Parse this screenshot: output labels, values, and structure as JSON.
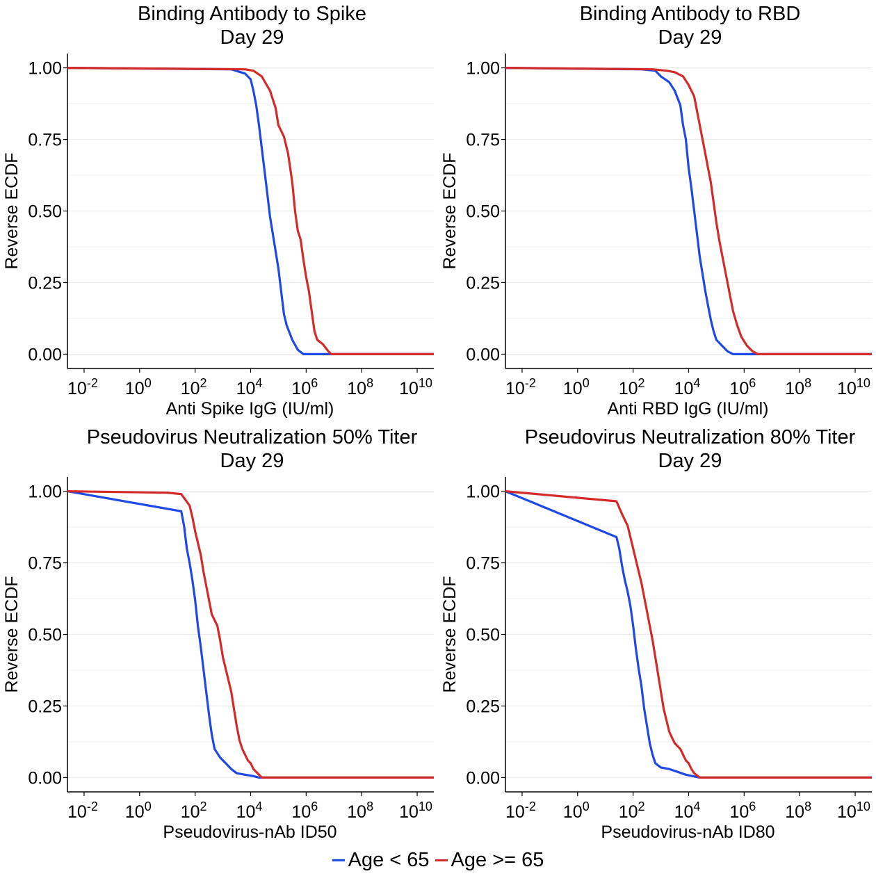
{
  "colors": {
    "young": "#1f49e6",
    "old": "#d42a2a",
    "grid": "#ebebeb",
    "axis": "#000000"
  },
  "legend": {
    "young_label": "Age < 65",
    "old_label": "Age >= 65"
  },
  "chart_data": [
    {
      "type": "line",
      "title": "Binding Antibody to Spike",
      "subtitle": "Day 29",
      "xlabel": "Anti Spike IgG (IU/ml)",
      "ylabel": "Reverse ECDF",
      "x_scale": "log10",
      "xlim_log10": [
        -2.6,
        10.6
      ],
      "ylim": [
        0,
        1
      ],
      "x_tick_exponents": [
        -2,
        0,
        2,
        4,
        6,
        8,
        10
      ],
      "x_tick_base": "10",
      "y_ticks": [
        "0.00",
        "0.25",
        "0.50",
        "0.75",
        "1.00"
      ],
      "grid": true,
      "series": [
        {
          "name": "Age < 65",
          "color_key": "young",
          "points": [
            [
              -2.6,
              1.0
            ],
            [
              3.3,
              0.995
            ],
            [
              3.8,
              0.98
            ],
            [
              4.0,
              0.96
            ],
            [
              4.1,
              0.92
            ],
            [
              4.2,
              0.87
            ],
            [
              4.3,
              0.8
            ],
            [
              4.4,
              0.72
            ],
            [
              4.5,
              0.64
            ],
            [
              4.6,
              0.56
            ],
            [
              4.7,
              0.48
            ],
            [
              4.8,
              0.42
            ],
            [
              4.9,
              0.36
            ],
            [
              5.0,
              0.3
            ],
            [
              5.1,
              0.22
            ],
            [
              5.2,
              0.14
            ],
            [
              5.3,
              0.1
            ],
            [
              5.5,
              0.05
            ],
            [
              5.7,
              0.015
            ],
            [
              5.9,
              0.0
            ],
            [
              10.6,
              0.0
            ]
          ]
        },
        {
          "name": "Age >= 65",
          "color_key": "old",
          "points": [
            [
              -2.6,
              1.0
            ],
            [
              3.8,
              0.995
            ],
            [
              4.1,
              0.99
            ],
            [
              4.4,
              0.97
            ],
            [
              4.7,
              0.92
            ],
            [
              4.9,
              0.86
            ],
            [
              5.0,
              0.8
            ],
            [
              5.2,
              0.76
            ],
            [
              5.35,
              0.7
            ],
            [
              5.5,
              0.6
            ],
            [
              5.6,
              0.5
            ],
            [
              5.7,
              0.43
            ],
            [
              5.8,
              0.4
            ],
            [
              5.9,
              0.33
            ],
            [
              6.0,
              0.27
            ],
            [
              6.1,
              0.22
            ],
            [
              6.2,
              0.15
            ],
            [
              6.3,
              0.08
            ],
            [
              6.4,
              0.05
            ],
            [
              6.6,
              0.035
            ],
            [
              6.8,
              0.01
            ],
            [
              6.9,
              0.0
            ],
            [
              10.6,
              0.0
            ]
          ]
        }
      ]
    },
    {
      "type": "line",
      "title": "Binding Antibody to RBD",
      "subtitle": "Day 29",
      "xlabel": "Anti RBD IgG (IU/ml)",
      "ylabel": "Reverse ECDF",
      "x_scale": "log10",
      "xlim_log10": [
        -2.6,
        10.6
      ],
      "ylim": [
        0,
        1
      ],
      "x_tick_exponents": [
        -2,
        0,
        2,
        4,
        6,
        8,
        10
      ],
      "x_tick_base": "10",
      "y_ticks": [
        "0.00",
        "0.25",
        "0.50",
        "0.75",
        "1.00"
      ],
      "grid": true,
      "series": [
        {
          "name": "Age < 65",
          "color_key": "young",
          "points": [
            [
              -2.6,
              1.0
            ],
            [
              2.3,
              0.995
            ],
            [
              2.8,
              0.99
            ],
            [
              3.0,
              0.97
            ],
            [
              3.3,
              0.95
            ],
            [
              3.5,
              0.92
            ],
            [
              3.7,
              0.87
            ],
            [
              3.8,
              0.8
            ],
            [
              3.9,
              0.75
            ],
            [
              4.0,
              0.65
            ],
            [
              4.1,
              0.58
            ],
            [
              4.2,
              0.5
            ],
            [
              4.3,
              0.42
            ],
            [
              4.4,
              0.34
            ],
            [
              4.5,
              0.28
            ],
            [
              4.6,
              0.22
            ],
            [
              4.7,
              0.17
            ],
            [
              4.8,
              0.12
            ],
            [
              4.9,
              0.08
            ],
            [
              5.0,
              0.05
            ],
            [
              5.2,
              0.03
            ],
            [
              5.4,
              0.01
            ],
            [
              5.6,
              0.0
            ],
            [
              10.6,
              0.0
            ]
          ]
        },
        {
          "name": "Age >= 65",
          "color_key": "old",
          "points": [
            [
              -2.6,
              1.0
            ],
            [
              2.7,
              0.995
            ],
            [
              3.2,
              0.99
            ],
            [
              3.5,
              0.985
            ],
            [
              3.8,
              0.97
            ],
            [
              4.0,
              0.94
            ],
            [
              4.2,
              0.9
            ],
            [
              4.3,
              0.85
            ],
            [
              4.4,
              0.8
            ],
            [
              4.5,
              0.75
            ],
            [
              4.6,
              0.7
            ],
            [
              4.7,
              0.65
            ],
            [
              4.8,
              0.6
            ],
            [
              4.9,
              0.53
            ],
            [
              5.0,
              0.46
            ],
            [
              5.1,
              0.4
            ],
            [
              5.2,
              0.35
            ],
            [
              5.3,
              0.3
            ],
            [
              5.4,
              0.25
            ],
            [
              5.5,
              0.2
            ],
            [
              5.6,
              0.15
            ],
            [
              5.75,
              0.1
            ],
            [
              5.9,
              0.06
            ],
            [
              6.1,
              0.03
            ],
            [
              6.3,
              0.01
            ],
            [
              6.5,
              0.0
            ],
            [
              10.6,
              0.0
            ]
          ]
        }
      ]
    },
    {
      "type": "line",
      "title": "Pseudovirus Neutralization 50% Titer",
      "subtitle": "Day 29",
      "xlabel": "Pseudovirus-nAb ID50",
      "ylabel": "Reverse ECDF",
      "x_scale": "log10",
      "xlim_log10": [
        -2.6,
        10.6
      ],
      "ylim": [
        0,
        1
      ],
      "x_tick_exponents": [
        -2,
        0,
        2,
        4,
        6,
        8,
        10
      ],
      "x_tick_base": "10",
      "y_ticks": [
        "0.00",
        "0.25",
        "0.50",
        "0.75",
        "1.00"
      ],
      "grid": true,
      "series": [
        {
          "name": "Age < 65",
          "color_key": "young",
          "points": [
            [
              -2.6,
              1.0
            ],
            [
              1.5,
              0.93
            ],
            [
              1.6,
              0.88
            ],
            [
              1.7,
              0.8
            ],
            [
              1.8,
              0.75
            ],
            [
              1.9,
              0.69
            ],
            [
              2.0,
              0.62
            ],
            [
              2.1,
              0.53
            ],
            [
              2.2,
              0.46
            ],
            [
              2.3,
              0.38
            ],
            [
              2.4,
              0.3
            ],
            [
              2.5,
              0.22
            ],
            [
              2.6,
              0.15
            ],
            [
              2.7,
              0.1
            ],
            [
              2.9,
              0.07
            ],
            [
              3.1,
              0.05
            ],
            [
              3.3,
              0.03
            ],
            [
              3.5,
              0.015
            ],
            [
              3.8,
              0.01
            ],
            [
              4.1,
              0.005
            ],
            [
              4.3,
              0.0
            ],
            [
              10.6,
              0.0
            ]
          ]
        },
        {
          "name": "Age >= 65",
          "color_key": "old",
          "points": [
            [
              -2.6,
              1.0
            ],
            [
              1.0,
              0.995
            ],
            [
              1.5,
              0.99
            ],
            [
              1.8,
              0.95
            ],
            [
              1.9,
              0.91
            ],
            [
              2.0,
              0.86
            ],
            [
              2.1,
              0.82
            ],
            [
              2.2,
              0.78
            ],
            [
              2.3,
              0.72
            ],
            [
              2.4,
              0.67
            ],
            [
              2.5,
              0.62
            ],
            [
              2.6,
              0.57
            ],
            [
              2.8,
              0.53
            ],
            [
              2.9,
              0.48
            ],
            [
              3.0,
              0.42
            ],
            [
              3.1,
              0.38
            ],
            [
              3.2,
              0.34
            ],
            [
              3.3,
              0.3
            ],
            [
              3.4,
              0.24
            ],
            [
              3.5,
              0.18
            ],
            [
              3.6,
              0.13
            ],
            [
              3.7,
              0.1
            ],
            [
              3.8,
              0.08
            ],
            [
              3.9,
              0.06
            ],
            [
              4.0,
              0.05
            ],
            [
              4.1,
              0.03
            ],
            [
              4.2,
              0.02
            ],
            [
              4.3,
              0.01
            ],
            [
              4.4,
              0.0
            ],
            [
              10.6,
              0.0
            ]
          ]
        }
      ]
    },
    {
      "type": "line",
      "title": "Pseudovirus Neutralization 80% Titer",
      "subtitle": "Day 29",
      "xlabel": "Pseudovirus-nAb ID80",
      "ylabel": "Reverse ECDF",
      "x_scale": "log10",
      "xlim_log10": [
        -2.6,
        10.6
      ],
      "ylim": [
        0,
        1
      ],
      "x_tick_exponents": [
        -2,
        0,
        2,
        4,
        6,
        8,
        10
      ],
      "x_tick_base": "10",
      "y_ticks": [
        "0.00",
        "0.25",
        "0.50",
        "0.75",
        "1.00"
      ],
      "grid": true,
      "series": [
        {
          "name": "Age < 65",
          "color_key": "young",
          "points": [
            [
              -2.6,
              1.0
            ],
            [
              1.4,
              0.84
            ],
            [
              1.5,
              0.8
            ],
            [
              1.6,
              0.74
            ],
            [
              1.7,
              0.69
            ],
            [
              1.8,
              0.65
            ],
            [
              1.9,
              0.6
            ],
            [
              2.0,
              0.53
            ],
            [
              2.1,
              0.45
            ],
            [
              2.2,
              0.38
            ],
            [
              2.3,
              0.32
            ],
            [
              2.4,
              0.24
            ],
            [
              2.5,
              0.18
            ],
            [
              2.6,
              0.12
            ],
            [
              2.7,
              0.08
            ],
            [
              2.8,
              0.05
            ],
            [
              3.0,
              0.035
            ],
            [
              3.3,
              0.03
            ],
            [
              3.6,
              0.02
            ],
            [
              3.9,
              0.01
            ],
            [
              4.4,
              0.0
            ],
            [
              10.6,
              0.0
            ]
          ]
        },
        {
          "name": "Age >= 65",
          "color_key": "old",
          "points": [
            [
              -2.6,
              1.0
            ],
            [
              1.4,
              0.965
            ],
            [
              1.6,
              0.92
            ],
            [
              1.8,
              0.88
            ],
            [
              1.9,
              0.84
            ],
            [
              2.0,
              0.8
            ],
            [
              2.1,
              0.76
            ],
            [
              2.2,
              0.72
            ],
            [
              2.3,
              0.68
            ],
            [
              2.4,
              0.63
            ],
            [
              2.5,
              0.58
            ],
            [
              2.6,
              0.53
            ],
            [
              2.7,
              0.48
            ],
            [
              2.8,
              0.42
            ],
            [
              2.9,
              0.36
            ],
            [
              3.0,
              0.3
            ],
            [
              3.1,
              0.24
            ],
            [
              3.2,
              0.2
            ],
            [
              3.3,
              0.16
            ],
            [
              3.4,
              0.14
            ],
            [
              3.5,
              0.12
            ],
            [
              3.7,
              0.1
            ],
            [
              3.8,
              0.08
            ],
            [
              3.9,
              0.06
            ],
            [
              4.0,
              0.05
            ],
            [
              4.1,
              0.03
            ],
            [
              4.2,
              0.015
            ],
            [
              4.4,
              0.0
            ],
            [
              10.6,
              0.0
            ]
          ]
        }
      ]
    }
  ]
}
